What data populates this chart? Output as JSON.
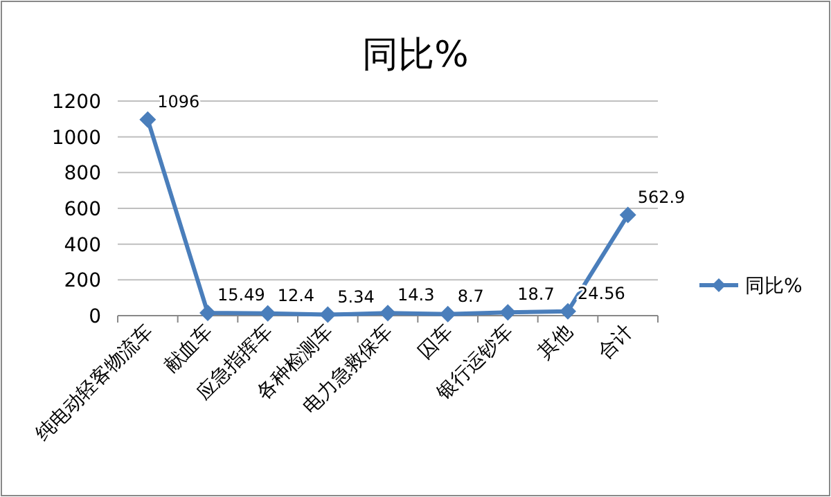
{
  "chart_data": {
    "type": "line",
    "title": "同比%",
    "categories": [
      "纯电动轻客物流车",
      "献血车",
      "应急指挥车",
      "各种检测车",
      "电力急救保车",
      "囚车",
      "银行运钞车",
      "其他",
      "合计"
    ],
    "series": [
      {
        "name": "同比%",
        "color": "#4a7ebb",
        "values": [
          1096,
          15.49,
          12.4,
          5.34,
          14.3,
          8.7,
          18.7,
          24.56,
          562.9
        ]
      }
    ],
    "ylim": [
      0,
      1200
    ],
    "yticks": [
      0,
      200,
      400,
      600,
      800,
      1000,
      1200
    ],
    "grid": "y",
    "legend": "right",
    "marker": "diamond",
    "line_style": "solid",
    "data_labels": true
  }
}
